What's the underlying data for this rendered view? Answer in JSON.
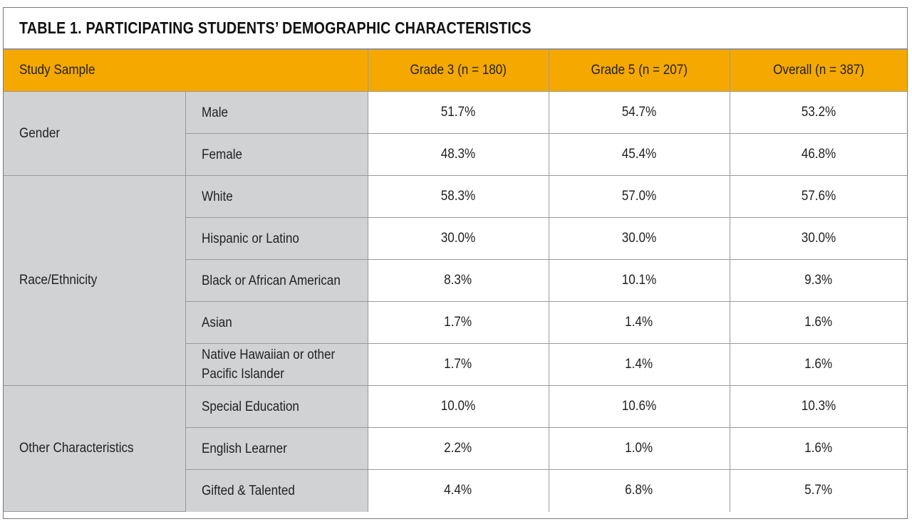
{
  "table": {
    "title": "TABLE 1. PARTICIPATING STUDENTS’ DEMOGRAPHIC CHARACTERISTICS",
    "header": {
      "sample_label": "Study Sample",
      "columns": [
        "Grade 3 (n = 180)",
        "Grade 5 (n = 207)",
        "Overall (n = 387)"
      ]
    },
    "groups": [
      {
        "label": "Gender",
        "rows": [
          {
            "label": "Male",
            "values": [
              "51.7%",
              "54.7%",
              "53.2%"
            ]
          },
          {
            "label": "Female",
            "values": [
              "48.3%",
              "45.4%",
              "46.8%"
            ]
          }
        ]
      },
      {
        "label": "Race/Ethnicity",
        "rows": [
          {
            "label": "White",
            "values": [
              "58.3%",
              "57.0%",
              "57.6%"
            ]
          },
          {
            "label": "Hispanic or Latino",
            "values": [
              "30.0%",
              "30.0%",
              "30.0%"
            ]
          },
          {
            "label": "Black or African American",
            "values": [
              "8.3%",
              "10.1%",
              "9.3%"
            ]
          },
          {
            "label": "Asian",
            "values": [
              "1.7%",
              "1.4%",
              "1.6%"
            ]
          },
          {
            "label": "Native Hawaiian or other Pacific Islander",
            "values": [
              "1.7%",
              "1.4%",
              "1.6%"
            ]
          }
        ]
      },
      {
        "label": "Other Characteristics",
        "rows": [
          {
            "label": "Special Education",
            "values": [
              "10.0%",
              "10.6%",
              "10.3%"
            ]
          },
          {
            "label": "English Learner",
            "values": [
              "2.2%",
              "1.0%",
              "1.6%"
            ]
          },
          {
            "label": "Gifted & Talented",
            "values": [
              "4.4%",
              "6.8%",
              "5.7%"
            ]
          }
        ]
      }
    ]
  }
}
